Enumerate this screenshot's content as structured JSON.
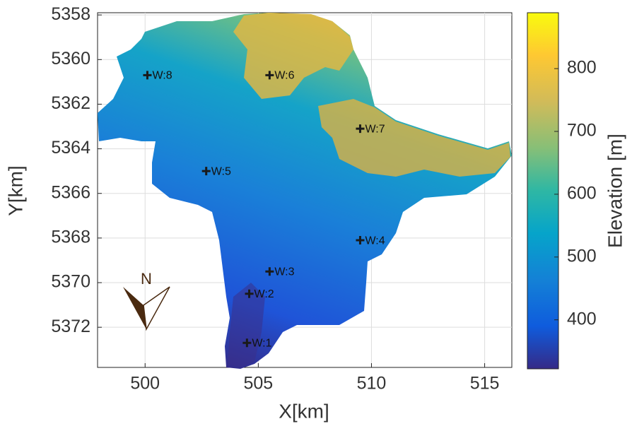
{
  "chart_data": {
    "type": "scatter",
    "xlabel": "X[km]",
    "ylabel": "Y[km]",
    "xlim": [
      497.9,
      516.2
    ],
    "xticks": [
      500,
      505,
      510,
      515
    ],
    "ylim": [
      5357.9,
      5373.8
    ],
    "y_inverted": true,
    "yticks": [
      5358,
      5360,
      5362,
      5364,
      5366,
      5368,
      5370,
      5372
    ],
    "grid": true,
    "x": [
      504.5,
      504.6,
      505.5,
      509.5,
      502.7,
      505.5,
      509.5,
      500.1
    ],
    "values": [
      5372.7,
      5370.5,
      5369.5,
      5368.1,
      5365.0,
      5360.7,
      5363.1,
      5360.7
    ],
    "labels": [
      "W:1",
      "W:2",
      "W:3",
      "W:4",
      "W:5",
      "W:6",
      "W:7",
      "W:8"
    ],
    "color": "#1a1a1a",
    "colorbar": {
      "label": "Elevation [m]",
      "lim": [
        322,
        889
      ],
      "ticks": [
        400,
        500,
        600,
        700,
        800
      ]
    },
    "compass_label": "N"
  }
}
